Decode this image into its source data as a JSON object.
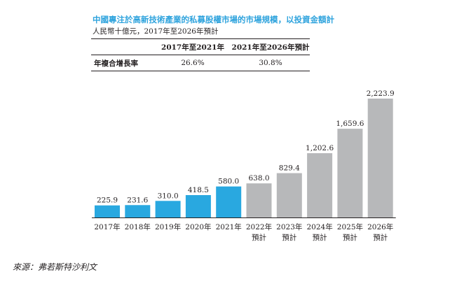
{
  "title": "中國專注於高新技術產業的私募股權市場的市場規模，以投資金額計",
  "unit": "人民幣十億元，2017年至2026年預計",
  "cagr_table": {
    "headers": [
      "",
      "2017年至2021年",
      "2021年至2026年預計"
    ],
    "row_label": "年複合增長率",
    "values": [
      "26.6%",
      "30.8%"
    ]
  },
  "source": "來源：弗若斯特沙利文",
  "colors": {
    "actual": "#29a8e0",
    "forecast": "#b7b8ba",
    "title": "#2ea3dd"
  },
  "chart_data": {
    "type": "bar",
    "categories": [
      "2017年",
      "2018年",
      "2019年",
      "2020年",
      "2021年",
      "2022年",
      "2023年",
      "2024年",
      "2025年",
      "2026年"
    ],
    "sublabels": [
      "",
      "",
      "",
      "",
      "",
      "預計",
      "預計",
      "預計",
      "預計",
      "預計"
    ],
    "values": [
      225.9,
      231.6,
      310.0,
      418.5,
      580.0,
      638.0,
      829.4,
      1202.6,
      1659.6,
      2223.9
    ],
    "value_labels": [
      "225.9",
      "231.6",
      "310.0",
      "418.5",
      "580.0",
      "638.0",
      "829.4",
      "1,202.6",
      "1,659.6",
      "2,223.9"
    ],
    "series_kind": [
      "actual",
      "actual",
      "actual",
      "actual",
      "actual",
      "forecast",
      "forecast",
      "forecast",
      "forecast",
      "forecast"
    ],
    "grid": false,
    "legend": "none"
  }
}
